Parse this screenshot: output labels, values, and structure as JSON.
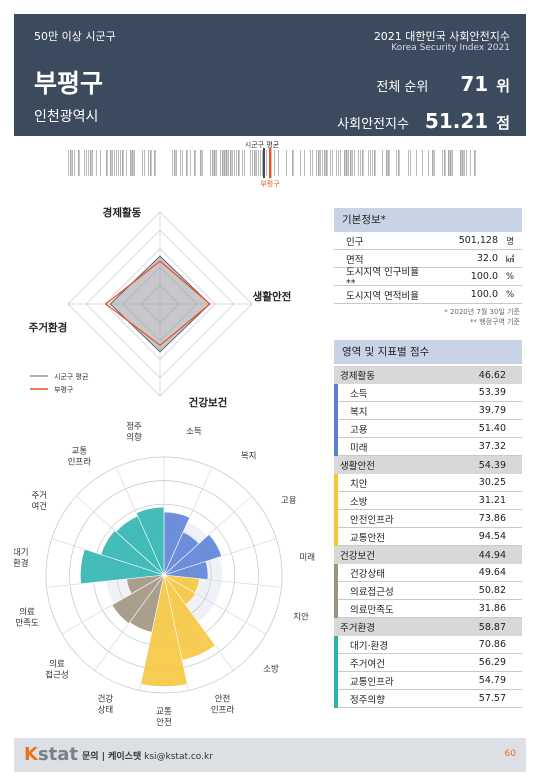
{
  "header": {
    "category": "50만 이상 시군구",
    "name": "부평구",
    "city": "인천광역시",
    "index_title": "2021 대한민국 사회안전지수",
    "index_subtitle": "Korea Security Index 2021",
    "rank_label": "전체 순위",
    "rank_value": "71",
    "rank_unit": "위",
    "score_label": "사회안전지수",
    "score_value": "51.21",
    "score_unit": "점"
  },
  "barcode": {
    "avg_label": "시군구 평균",
    "self_label": "부평구",
    "avg_color": "#3c4a5e",
    "self_color": "#e8541f"
  },
  "radar": {
    "axes": [
      "경제활동",
      "생활안전",
      "건강보건",
      "주거환경"
    ],
    "average": [
      52,
      54,
      52,
      54
    ],
    "self": [
      46.62,
      54.39,
      44.94,
      58.87
    ],
    "max": 100,
    "legend": {
      "average": "시군구 평균",
      "self": "부평구"
    },
    "colors": {
      "average": "#5a6272",
      "self": "#e8541f",
      "fill": "#9b9ba3"
    }
  },
  "rose": {
    "petals": [
      {
        "label": "소득",
        "value": 53.39,
        "group": 0
      },
      {
        "label": "복지",
        "value": 39.79,
        "group": 0
      },
      {
        "label": "고용",
        "value": 51.4,
        "group": 0
      },
      {
        "label": "미래",
        "value": 37.32,
        "group": 0
      },
      {
        "label": "치안",
        "value": 30.25,
        "group": 1
      },
      {
        "label": "소방",
        "value": 31.21,
        "group": 1
      },
      {
        "label": "안전 인프라",
        "value": 73.86,
        "group": 1
      },
      {
        "label": "교통 안전",
        "value": 94.54,
        "group": 1
      },
      {
        "label": "건강 상태",
        "value": 49.64,
        "group": 2
      },
      {
        "label": "의료 접근성",
        "value": 50.82,
        "group": 2
      },
      {
        "label": "의료 만족도",
        "value": 31.86,
        "group": 2
      },
      {
        "label": "대기 환경",
        "value": 70.86,
        "group": 3
      },
      {
        "label": "주거 여건",
        "value": 56.29,
        "group": 3
      },
      {
        "label": "교통 인프라",
        "value": 54.79,
        "group": 3
      },
      {
        "label": "정주 의향",
        "value": 57.57,
        "group": 3
      }
    ],
    "max": 100,
    "group_colors": [
      "#5b7fd6",
      "#f6c53b",
      "#a0937d",
      "#2bb3b1"
    ]
  },
  "info": {
    "title": "기본정보*",
    "rows": [
      {
        "label": "인구",
        "value": "501,128",
        "unit": "명"
      },
      {
        "label": "면적",
        "value": "32.0",
        "unit": "㎢"
      },
      {
        "label": "도시지역 인구비율**",
        "value": "100.0",
        "unit": "%"
      },
      {
        "label": "도시지역 면적비율",
        "value": "100.0",
        "unit": "%"
      }
    ],
    "note1": "* 2020년 7월 30일 기준",
    "note2": "** 행정구역 기준"
  },
  "scores": {
    "title": "영역 및 지표별 점수",
    "groups": [
      {
        "label": "경제활동",
        "value": "46.62",
        "color": "#5b7fd6",
        "items": [
          {
            "label": "소득",
            "value": "53.39"
          },
          {
            "label": "복지",
            "value": "39.79"
          },
          {
            "label": "고용",
            "value": "51.40"
          },
          {
            "label": "미래",
            "value": "37.32"
          }
        ]
      },
      {
        "label": "생활안전",
        "value": "54.39",
        "color": "#f6c53b",
        "items": [
          {
            "label": "치안",
            "value": "30.25"
          },
          {
            "label": "소방",
            "value": "31.21"
          },
          {
            "label": "안전인프라",
            "value": "73.86"
          },
          {
            "label": "교통안전",
            "value": "94.54"
          }
        ]
      },
      {
        "label": "건강보건",
        "value": "44.94",
        "color": "#a0937d",
        "items": [
          {
            "label": "건강상태",
            "value": "49.64"
          },
          {
            "label": "의료접근성",
            "value": "50.82"
          },
          {
            "label": "의료만족도",
            "value": "31.86"
          }
        ]
      },
      {
        "label": "주거환경",
        "value": "58.87",
        "color": "#2bb3b1",
        "items": [
          {
            "label": "대기·환경",
            "value": "70.86"
          },
          {
            "label": "주거여건",
            "value": "56.29"
          },
          {
            "label": "교통인프라",
            "value": "54.79"
          },
          {
            "label": "정주의향",
            "value": "57.57"
          }
        ]
      }
    ]
  },
  "footer": {
    "logo_k": "K",
    "logo_rest": "stat",
    "contact_label": "문의 | 케이스탯",
    "contact_email": "ksi@kstat.co.kr",
    "page": "60"
  }
}
